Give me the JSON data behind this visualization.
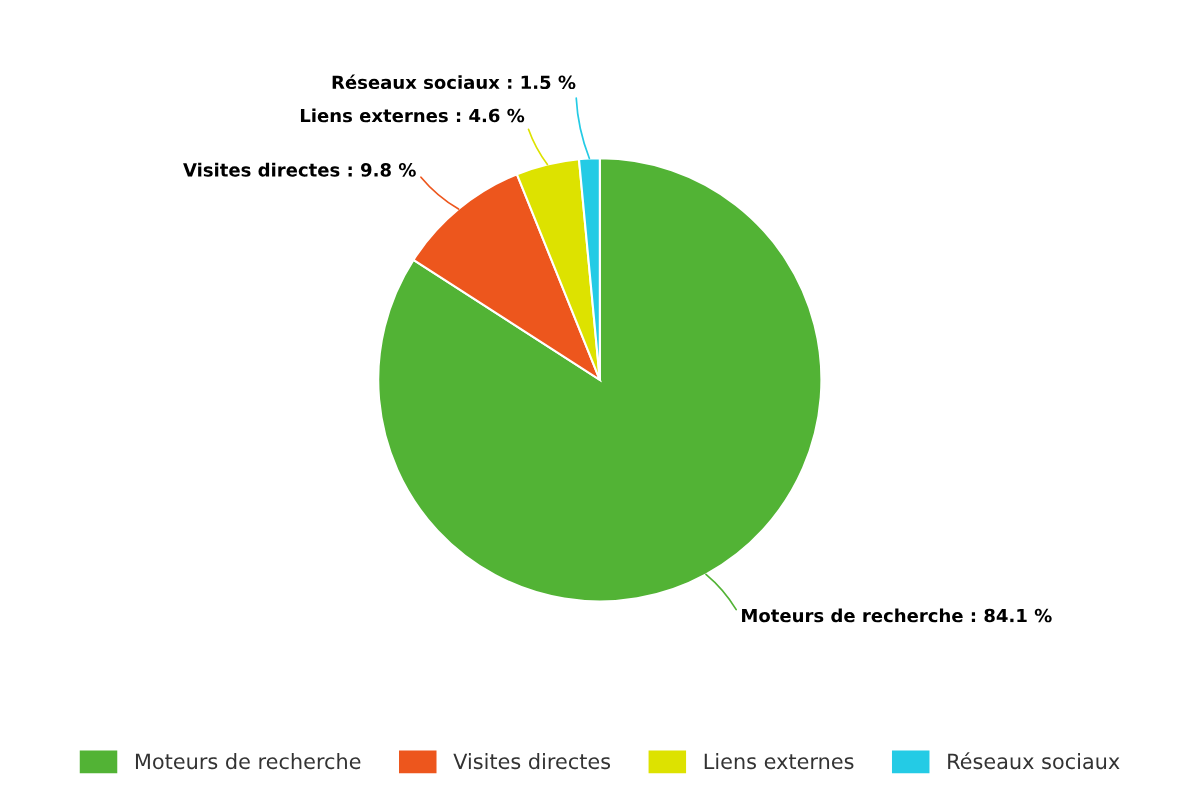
{
  "chart_data": {
    "type": "pie",
    "categories": [
      "Moteurs de recherche",
      "Visites directes",
      "Liens externes",
      "Réseaux sociaux"
    ],
    "values": [
      84.1,
      9.8,
      4.6,
      1.5
    ],
    "colors": [
      "#52b335",
      "#ed561d",
      "#dde200",
      "#24cbe5"
    ],
    "value_labels": [
      "Moteurs de recherche : 84.1 %",
      "Visites directes : 9.8 %",
      "Liens externes : 4.6 %",
      "Réseaux sociaux : 1.5 %"
    ],
    "legend": "bottom"
  }
}
